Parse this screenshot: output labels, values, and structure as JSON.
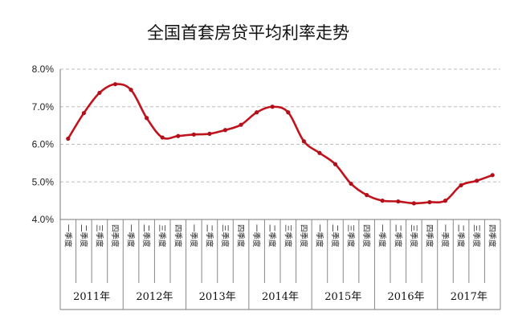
{
  "chart_data": {
    "type": "line",
    "title": "全国首套房贷平均利率走势",
    "ylim": [
      4.0,
      8.0
    ],
    "y_ticks": [
      "4.0%",
      "5.0%",
      "6.0%",
      "7.0%",
      "8.0%"
    ],
    "grid": true,
    "x_tick_labels": [
      "一季度",
      "二季度",
      "三季度",
      "四季度"
    ],
    "years": [
      "2011年",
      "2012年",
      "2013年",
      "2014年",
      "2015年",
      "2016年",
      "2017年"
    ],
    "quarters_per_year": 4,
    "values": [
      6.15,
      6.83,
      7.37,
      7.6,
      7.45,
      6.7,
      6.18,
      6.22,
      6.26,
      6.28,
      6.38,
      6.52,
      6.85,
      7.0,
      6.85,
      6.08,
      5.77,
      5.47,
      4.95,
      4.65,
      4.5,
      4.48,
      4.43,
      4.46,
      4.5,
      4.91,
      5.03,
      5.18
    ],
    "colors": {
      "line": "#c0131c",
      "marker": "#b1101a"
    }
  }
}
